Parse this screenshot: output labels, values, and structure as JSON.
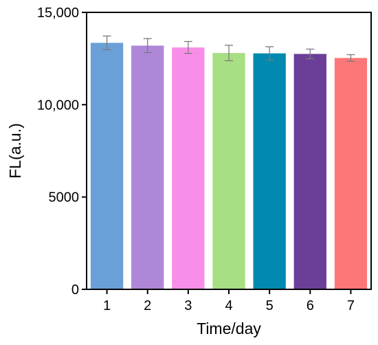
{
  "chart_data": {
    "type": "bar",
    "title": "",
    "xlabel": "Time/day",
    "ylabel": "FL(a.u.)",
    "categories": [
      "1",
      "2",
      "3",
      "4",
      "5",
      "6",
      "7"
    ],
    "values": [
      13350,
      13200,
      13100,
      12800,
      12780,
      12750,
      12530
    ],
    "errors": [
      370,
      380,
      320,
      420,
      360,
      260,
      180
    ],
    "colors": [
      "#6a9fd8",
      "#ae87d8",
      "#f98ee9",
      "#a8de84",
      "#0189af",
      "#6b3f97",
      "#fd7778"
    ],
    "ylim": [
      0,
      15000
    ],
    "yticks": [
      0,
      5000,
      10000,
      15000
    ],
    "ytick_labels": [
      "0",
      "5000",
      "10,000",
      "15,000"
    ],
    "grid": false,
    "legend": "none"
  }
}
